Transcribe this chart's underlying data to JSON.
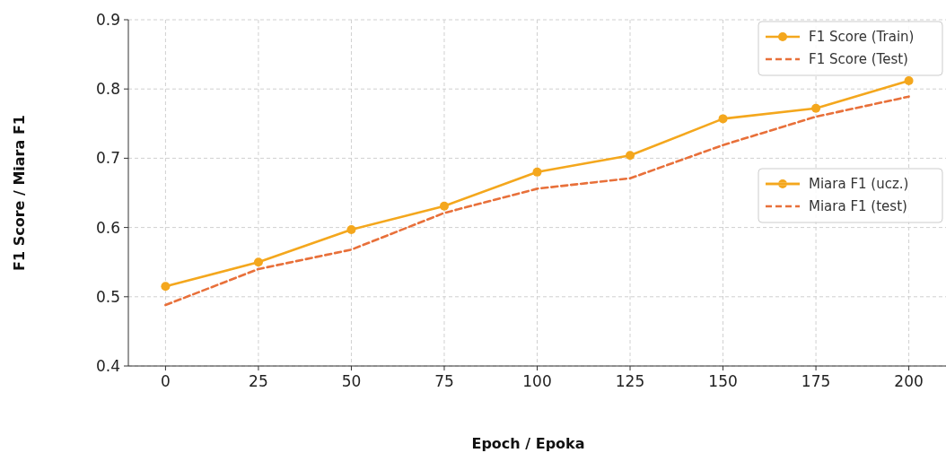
{
  "chart_data": {
    "type": "line",
    "xlabel": "Epoch / Epoka",
    "ylabel": "F1 Score / Miara F1",
    "x": [
      0,
      25,
      50,
      75,
      100,
      125,
      150,
      175,
      200
    ],
    "series": [
      {
        "name": "F1 Score (Train)",
        "color": "#f4a71d",
        "marker": "circle",
        "line_style": "solid",
        "values": [
          0.515,
          0.55,
          0.597,
          0.631,
          0.68,
          0.704,
          0.757,
          0.772,
          0.812
        ]
      },
      {
        "name": "F1 Score (Test)",
        "color": "#e8703a",
        "marker": "none",
        "line_style": "dashed",
        "values": [
          0.488,
          0.54,
          0.568,
          0.621,
          0.656,
          0.671,
          0.719,
          0.76,
          0.789
        ]
      }
    ],
    "annotations": [
      "Miara F1 (ucz.)",
      "Miara F1 (test)"
    ],
    "xlim": [
      -10,
      210
    ],
    "ylim": [
      0.4,
      0.9
    ],
    "xticks": [
      0,
      25,
      50,
      75,
      100,
      125,
      150,
      175,
      200
    ],
    "yticks": [
      0.4,
      0.5,
      0.6,
      0.7,
      0.8,
      0.9
    ],
    "grid": true,
    "legend": "top right"
  }
}
